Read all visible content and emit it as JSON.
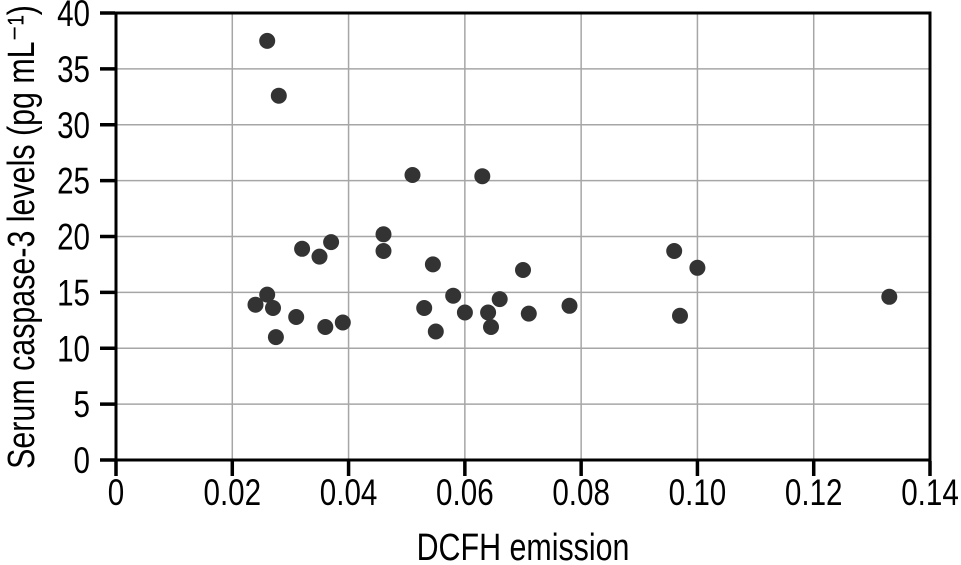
{
  "figure": {
    "background": "#ffffff"
  },
  "chart_data": {
    "type": "scatter",
    "title": "",
    "xlabel": "DCFH emission",
    "ylabel": "Serum caspase-3 levels (pg mL⁻¹)",
    "xlim": [
      0,
      0.14
    ],
    "ylim": [
      0,
      40
    ],
    "x_tick_values": [
      0,
      0.02,
      0.04,
      0.06,
      0.08,
      0.1,
      0.12,
      0.14
    ],
    "x_tick_labels": [
      "0",
      "0.02",
      "0.04",
      "0.06",
      "0.08",
      "0.10",
      "0.12",
      "0.14"
    ],
    "y_tick_values": [
      0,
      5,
      10,
      15,
      20,
      25,
      30,
      35,
      40
    ],
    "y_tick_labels": [
      "0",
      "5",
      "10",
      "15",
      "20",
      "25",
      "30",
      "35",
      "40"
    ],
    "grid": true,
    "legend_position": "none",
    "marker_shape": "circle",
    "marker_color": "#333333",
    "marker_radius_px": 8,
    "grid_color": "#a6a6a6",
    "axis_color": "#000000",
    "points": [
      [
        0.026,
        37.5
      ],
      [
        0.028,
        32.6
      ],
      [
        0.051,
        25.5
      ],
      [
        0.063,
        25.4
      ],
      [
        0.032,
        18.9
      ],
      [
        0.035,
        18.2
      ],
      [
        0.037,
        19.5
      ],
      [
        0.046,
        20.2
      ],
      [
        0.046,
        18.7
      ],
      [
        0.024,
        13.9
      ],
      [
        0.026,
        14.8
      ],
      [
        0.027,
        13.6
      ],
      [
        0.031,
        12.8
      ],
      [
        0.0275,
        11.0
      ],
      [
        0.036,
        11.9
      ],
      [
        0.039,
        12.3
      ],
      [
        0.053,
        13.6
      ],
      [
        0.0545,
        17.5
      ],
      [
        0.055,
        11.5
      ],
      [
        0.058,
        14.7
      ],
      [
        0.06,
        13.2
      ],
      [
        0.064,
        13.2
      ],
      [
        0.0645,
        11.9
      ],
      [
        0.066,
        14.4
      ],
      [
        0.07,
        17.0
      ],
      [
        0.071,
        13.1
      ],
      [
        0.078,
        13.8
      ],
      [
        0.096,
        18.7
      ],
      [
        0.097,
        12.9
      ],
      [
        0.1,
        17.2
      ],
      [
        0.133,
        14.6
      ]
    ]
  }
}
